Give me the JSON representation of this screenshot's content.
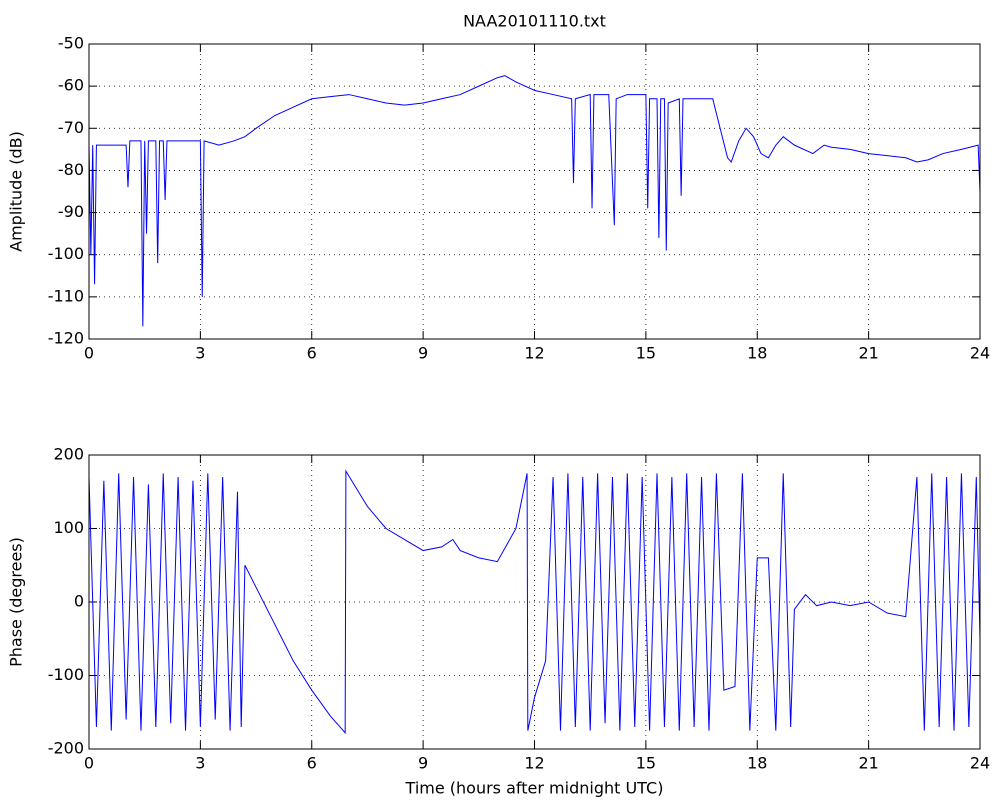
{
  "chart_data": [
    {
      "type": "line",
      "title": "NAA20101110.txt",
      "ylabel": "Amplitude (dB)",
      "x": [
        0,
        0.05,
        0.1,
        0.15,
        0.2,
        0.5,
        1.0,
        1.05,
        1.1,
        1.4,
        1.45,
        1.5,
        1.55,
        1.6,
        1.8,
        1.85,
        1.9,
        2.0,
        2.05,
        2.1,
        2.5,
        3.0,
        3.05,
        3.1,
        3.5,
        3.9,
        4.2,
        4.5,
        5.0,
        5.5,
        6.0,
        6.5,
        7.0,
        7.5,
        8.0,
        8.5,
        9.0,
        9.5,
        10.0,
        10.5,
        11.0,
        11.2,
        11.5,
        12.0,
        12.5,
        13.0,
        13.05,
        13.1,
        13.5,
        13.55,
        13.6,
        14.0,
        14.15,
        14.2,
        14.5,
        15.0,
        15.05,
        15.1,
        15.3,
        15.35,
        15.4,
        15.5,
        15.55,
        15.6,
        15.9,
        15.95,
        16.0,
        16.5,
        16.8,
        17.0,
        17.2,
        17.3,
        17.5,
        17.7,
        17.9,
        18.1,
        18.3,
        18.5,
        18.7,
        19.0,
        19.5,
        19.8,
        20.0,
        20.5,
        21.0,
        21.5,
        22.0,
        22.3,
        22.6,
        23.0,
        23.5,
        23.95,
        24.0
      ],
      "values": [
        -74,
        -100,
        -74,
        -107,
        -74,
        -74,
        -74,
        -84,
        -73,
        -73,
        -117,
        -73,
        -95,
        -73,
        -73,
        -102,
        -73,
        -73,
        -87,
        -73,
        -73,
        -73,
        -110,
        -73,
        -74,
        -73,
        -72,
        -70,
        -67,
        -65,
        -63,
        -62.5,
        -62,
        -63,
        -64,
        -64.5,
        -64,
        -63,
        -62,
        -60,
        -58,
        -57.5,
        -59,
        -61,
        -62,
        -63,
        -83,
        -63,
        -62,
        -89,
        -62,
        -62,
        -93,
        -63,
        -62,
        -62,
        -89,
        -63,
        -63,
        -96,
        -63,
        -63,
        -99,
        -64,
        -63,
        -86,
        -63,
        -63,
        -63,
        -70,
        -77,
        -78,
        -73,
        -70,
        -72,
        -76,
        -77,
        -74,
        -72,
        -74,
        -76,
        -74,
        -74.5,
        -75,
        -76,
        -76.5,
        -77,
        -78,
        -77.5,
        -76,
        -75,
        -74,
        -85
      ],
      "color": "#0000ff",
      "xlim": [
        0,
        24
      ],
      "xticks": [
        0,
        3,
        6,
        9,
        12,
        15,
        18,
        21,
        24
      ],
      "ylim": [
        -120,
        -50
      ],
      "yticks": [
        -120,
        -110,
        -100,
        -90,
        -80,
        -70,
        -60,
        -50
      ],
      "grid": true
    },
    {
      "type": "line",
      "ylabel": "Phase (degrees)",
      "xlabel": "Time (hours after midnight UTC)",
      "x": [
        0,
        0.2,
        0.4,
        0.6,
        0.8,
        1.0,
        1.2,
        1.4,
        1.6,
        1.8,
        2.0,
        2.2,
        2.4,
        2.6,
        2.8,
        3.0,
        3.2,
        3.4,
        3.6,
        3.8,
        4.0,
        4.1,
        4.2,
        4.5,
        5.0,
        5.5,
        6.0,
        6.5,
        6.9,
        6.92,
        7.5,
        8.0,
        8.5,
        9.0,
        9.5,
        9.8,
        10.0,
        10.5,
        11.0,
        11.5,
        11.8,
        11.82,
        12.0,
        12.3,
        12.5,
        12.7,
        12.9,
        13.1,
        13.3,
        13.5,
        13.7,
        13.9,
        14.1,
        14.3,
        14.5,
        14.7,
        14.9,
        15.1,
        15.3,
        15.5,
        15.7,
        15.9,
        16.1,
        16.3,
        16.5,
        16.7,
        16.9,
        17.1,
        17.4,
        17.6,
        17.8,
        18.0,
        18.3,
        18.5,
        18.7,
        18.9,
        19.0,
        19.3,
        19.6,
        20.0,
        20.5,
        21.0,
        21.5,
        22.0,
        22.3,
        22.5,
        22.7,
        22.9,
        23.1,
        23.3,
        23.5,
        23.7,
        23.9,
        24.0
      ],
      "values": [
        170,
        -170,
        165,
        -175,
        175,
        -160,
        170,
        -175,
        160,
        -170,
        175,
        -165,
        170,
        -175,
        165,
        -170,
        175,
        -160,
        170,
        -175,
        150,
        -170,
        50,
        20,
        -30,
        -80,
        -120,
        -155,
        -178,
        178,
        130,
        100,
        85,
        70,
        75,
        85,
        70,
        60,
        55,
        100,
        175,
        -175,
        -130,
        -80,
        170,
        -175,
        175,
        -170,
        170,
        -175,
        175,
        -165,
        170,
        -175,
        175,
        -170,
        170,
        -175,
        175,
        -170,
        170,
        -175,
        175,
        -170,
        170,
        -175,
        175,
        -120,
        -115,
        175,
        -175,
        60,
        60,
        -175,
        175,
        -170,
        -10,
        10,
        -5,
        0,
        -5,
        0,
        -15,
        -20,
        170,
        -175,
        175,
        -170,
        170,
        -175,
        175,
        -170,
        170,
        -50
      ],
      "color": "#0000ff",
      "xlim": [
        0,
        24
      ],
      "xticks": [
        0,
        3,
        6,
        9,
        12,
        15,
        18,
        21,
        24
      ],
      "ylim": [
        -200,
        200
      ],
      "yticks": [
        -200,
        -100,
        0,
        100,
        200
      ],
      "grid": true
    }
  ]
}
